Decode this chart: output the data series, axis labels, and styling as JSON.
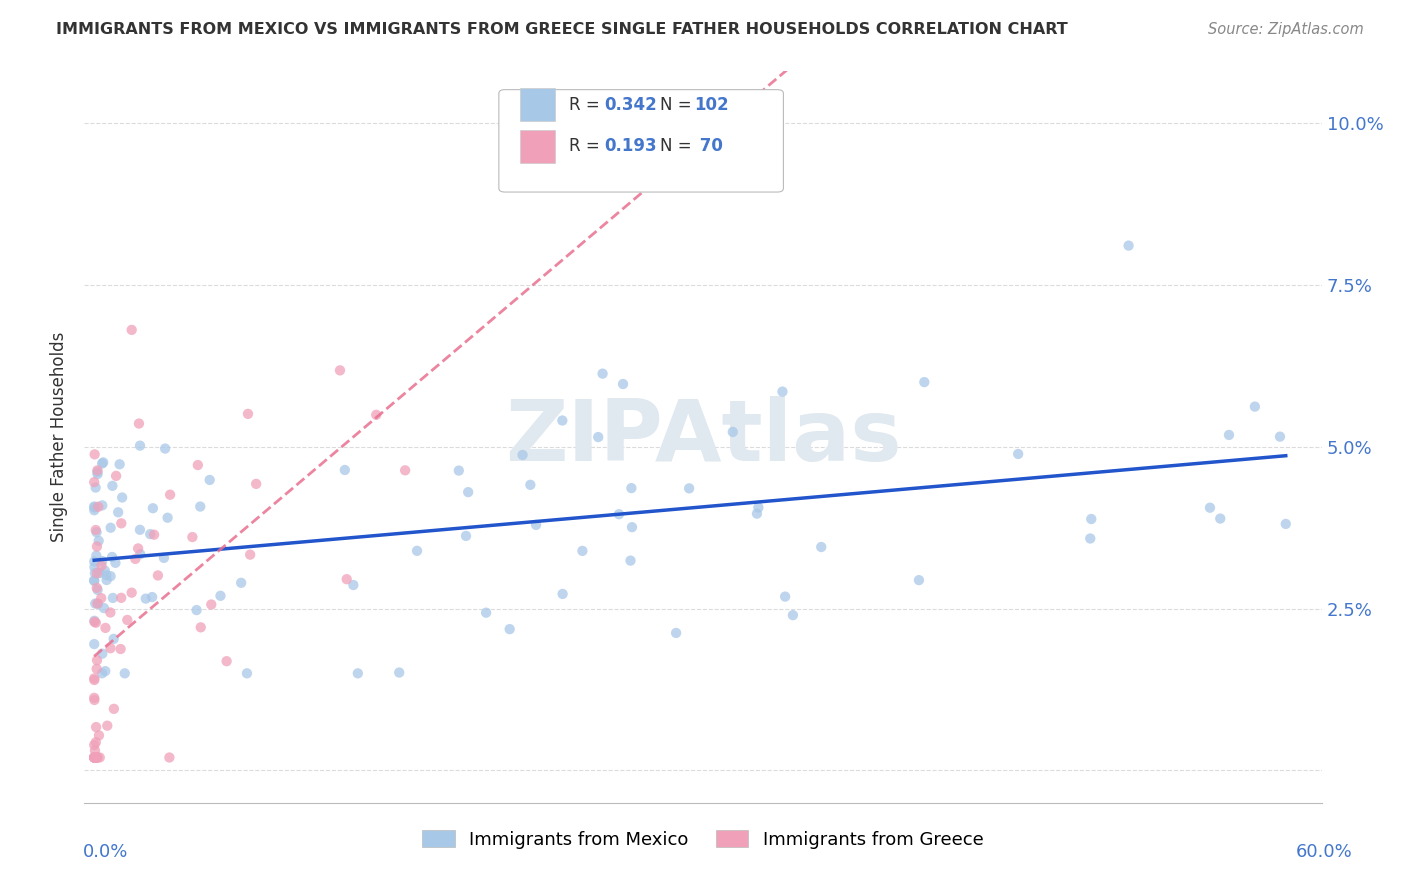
{
  "title": "IMMIGRANTS FROM MEXICO VS IMMIGRANTS FROM GREECE SINGLE FATHER HOUSEHOLDS CORRELATION CHART",
  "source": "Source: ZipAtlas.com",
  "ylabel": "Single Father Households",
  "legend_mexico": "Immigrants from Mexico",
  "legend_greece": "Immigrants from Greece",
  "R_mexico": 0.342,
  "N_mexico": 102,
  "R_greece": 0.193,
  "N_greece": 70,
  "color_mexico": "#a8c8e8",
  "color_greece": "#f0a0b8",
  "trendline_mexico": "#2255cc",
  "trendline_greece": "#e87090",
  "watermark_color": "#e0e8f0",
  "watermark_text": "ZIPAtlas",
  "bg_color": "#ffffff",
  "grid_color": "#cccccc",
  "axis_label_color": "#4477cc",
  "title_color": "#333333",
  "source_color": "#888888",
  "legend_text_color": "#333333",
  "legend_value_color": "#4477cc",
  "xlim_min": -0.005,
  "xlim_max": 0.625,
  "ylim_min": -0.005,
  "ylim_max": 0.108,
  "ytick_vals": [
    0.0,
    0.025,
    0.05,
    0.075,
    0.1
  ],
  "ytick_labels": [
    "",
    "2.5%",
    "5.0%",
    "7.5%",
    "10.0%"
  ]
}
